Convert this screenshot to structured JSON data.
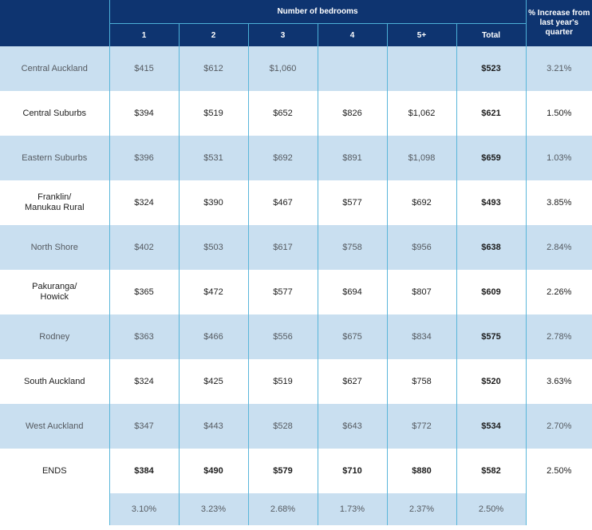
{
  "header": {
    "group_label": "Number of bedrooms",
    "columns": [
      "1",
      "2",
      "3",
      "4",
      "5+",
      "Total"
    ],
    "pct_label": "% Increase from last year's quarter"
  },
  "rows": [
    {
      "region": "Central Auckland",
      "values": [
        "$415",
        "$612",
        "$1,060",
        "",
        ""
      ],
      "total": "$523",
      "pct": "3.21%"
    },
    {
      "region": "Central Suburbs",
      "values": [
        "$394",
        "$519",
        "$652",
        "$826",
        "$1,062"
      ],
      "total": "$621",
      "pct": "1.50%"
    },
    {
      "region": "Eastern Suburbs",
      "values": [
        "$396",
        "$531",
        "$692",
        "$891",
        "$1,098"
      ],
      "total": "$659",
      "pct": "1.03%"
    },
    {
      "region": "Franklin/\nManukau Rural",
      "values": [
        "$324",
        "$390",
        "$467",
        "$577",
        "$692"
      ],
      "total": "$493",
      "pct": "3.85%"
    },
    {
      "region": "North Shore",
      "values": [
        "$402",
        "$503",
        "$617",
        "$758",
        "$956"
      ],
      "total": "$638",
      "pct": "2.84%"
    },
    {
      "region": "Pakuranga/\nHowick",
      "values": [
        "$365",
        "$472",
        "$577",
        "$694",
        "$807"
      ],
      "total": "$609",
      "pct": "2.26%"
    },
    {
      "region": "Rodney",
      "values": [
        "$363",
        "$466",
        "$556",
        "$675",
        "$834"
      ],
      "total": "$575",
      "pct": "2.78%"
    },
    {
      "region": "South Auckland",
      "values": [
        "$324",
        "$425",
        "$519",
        "$627",
        "$758"
      ],
      "total": "$520",
      "pct": "3.63%"
    },
    {
      "region": "West Auckland",
      "values": [
        "$347",
        "$443",
        "$528",
        "$643",
        "$772"
      ],
      "total": "$534",
      "pct": "2.70%"
    },
    {
      "region": "ENDS",
      "values": [
        "$384",
        "$490",
        "$579",
        "$710",
        "$880"
      ],
      "total": "$582",
      "pct": "2.50%"
    }
  ],
  "growth_row": [
    "3.10%",
    "3.23%",
    "2.68%",
    "1.73%",
    "2.37%",
    "2.50%"
  ]
}
